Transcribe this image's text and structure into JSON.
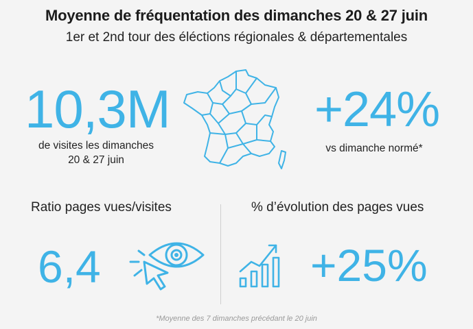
{
  "header": {
    "title": "Moyenne de fréquentation des dimanches 20 & 27 juin",
    "subtitle": "1er et 2nd tour des éléctions régionales & départementales"
  },
  "stats": {
    "visits": {
      "value": "10,3M",
      "label_line1": "de visites  les dimanches",
      "label_line2": "20 & 27 juin"
    },
    "growth": {
      "value": "+24%",
      "label": "vs dimanche normé*"
    },
    "ratio": {
      "title": "Ratio pages vues/visites",
      "value": "6,4"
    },
    "pageviews_evolution": {
      "title": "% d’évolution des pages vues",
      "value": "+25%"
    }
  },
  "footnote": "*Moyenne des 7 dimanches précédant le 20 juin",
  "icons": {
    "map": "france-regions-map-icon",
    "eye": "eye-click-icon",
    "chart": "growth-chart-icon"
  },
  "colors": {
    "accent": "#3fb3e6",
    "text": "#1c1c1c",
    "background": "#f4f4f4"
  }
}
